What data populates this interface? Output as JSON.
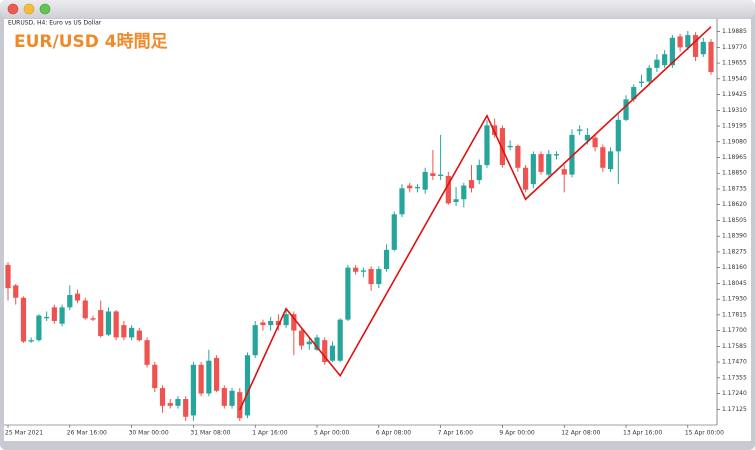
{
  "chart_data": {
    "type": "candlestick",
    "window_title": "EURUSD, H4:  Euro vs US Dollar",
    "title": "EUR/USD 4時間足",
    "title_color": "#ef8a2a",
    "up_color": "#26a69a",
    "down_color": "#ef5350",
    "categories": [
      "25 Mar 2021",
      null,
      null,
      null,
      null,
      null,
      null,
      null,
      "26 Mar 16:00",
      null,
      null,
      null,
      null,
      null,
      null,
      null,
      "30 Mar 00:00",
      null,
      null,
      null,
      null,
      null,
      null,
      null,
      "31 Mar 08:00",
      null,
      null,
      null,
      null,
      null,
      null,
      null,
      "1 Apr 16:00",
      null,
      null,
      null,
      null,
      null,
      null,
      null,
      "5 Apr 00:00",
      null,
      null,
      null,
      null,
      null,
      null,
      null,
      "6 Apr 08:00",
      null,
      null,
      null,
      null,
      null,
      null,
      null,
      "7 Apr 16:00",
      null,
      null,
      null,
      null,
      null,
      null,
      null,
      "9 Apr 00:00",
      null,
      null,
      null,
      null,
      null,
      null,
      null,
      "12 Apr 08:00",
      null,
      null,
      null,
      null,
      null,
      null,
      null,
      "13 Apr 16:00",
      null,
      null,
      null,
      null,
      null,
      null,
      null,
      "15 Apr 00:00",
      null,
      null,
      null
    ],
    "open": [
      1.1818,
      1.1803,
      1.1794,
      1.1762,
      1.1763,
      1.1779,
      1.1787,
      1.1775,
      1.1787,
      1.1797,
      1.1792,
      1.1779,
      1.1785,
      1.1767,
      1.1784,
      1.1774,
      1.1765,
      1.177,
      1.1763,
      1.1745,
      1.1728,
      1.1717,
      1.1715,
      1.172,
      1.1708,
      1.1745,
      1.1724,
      1.175,
      1.1728,
      1.1715,
      1.1725,
      1.1708,
      1.1752,
      1.1776,
      1.1774,
      1.1777,
      1.1774,
      1.1782,
      1.177,
      1.176,
      1.1756,
      1.1763,
      1.1748,
      1.1748,
      1.1778,
      1.1816,
      1.1813,
      1.1815,
      1.1804,
      1.1815,
      1.1829,
      1.1855,
      1.1876,
      1.1874,
      1.1873,
      1.1885,
      1.1883,
      1.1883,
      1.1864,
      1.1866,
      1.188,
      1.188,
      1.1891,
      1.192,
      1.1918,
      1.1904,
      1.1905,
      1.1889,
      1.1877,
      1.1899,
      1.1884,
      1.1898,
      1.1888,
      1.1884,
      1.1916,
      1.1909,
      1.1911,
      1.1904,
      1.1888,
      1.1901,
      1.1924,
      1.1939,
      1.1951,
      1.1952,
      1.1962,
      1.1964,
      1.1964,
      1.1985,
      1.1977,
      1.1986,
      1.1972,
      1.1981
    ],
    "high": [
      1.182,
      1.1804,
      1.1795,
      1.1765,
      1.1782,
      1.1784,
      1.1789,
      1.1789,
      1.1803,
      1.18,
      1.1794,
      1.1781,
      1.1792,
      1.1787,
      1.1785,
      1.1777,
      1.1774,
      1.1772,
      1.1765,
      1.1747,
      1.173,
      1.172,
      1.1722,
      1.1722,
      1.1747,
      1.1747,
      1.1756,
      1.1752,
      1.173,
      1.1728,
      1.1728,
      1.1754,
      1.1777,
      1.1778,
      1.178,
      1.1782,
      1.1785,
      1.1784,
      1.1772,
      1.1765,
      1.1767,
      1.1765,
      1.1762,
      1.1779,
      1.1818,
      1.1818,
      1.1816,
      1.1817,
      1.1817,
      1.1833,
      1.1857,
      1.1877,
      1.1878,
      1.1877,
      1.1889,
      1.1902,
      1.1913,
      1.1886,
      1.1875,
      1.1878,
      1.1891,
      1.1895,
      1.1924,
      1.1925,
      1.192,
      1.1909,
      1.1906,
      1.1891,
      1.1901,
      1.1901,
      1.1902,
      1.1901,
      1.1891,
      1.1917,
      1.192,
      1.1918,
      1.1913,
      1.1906,
      1.1904,
      1.1928,
      1.1942,
      1.195,
      1.1957,
      1.1964,
      1.1972,
      1.1975,
      1.1986,
      1.1987,
      1.1989,
      1.1988,
      1.1984,
      1.1983
    ],
    "low": [
      1.1792,
      1.1789,
      1.1761,
      1.1761,
      1.1762,
      1.1777,
      1.1775,
      1.1773,
      1.1785,
      1.179,
      1.1778,
      1.1777,
      1.1765,
      1.1766,
      1.1763,
      1.1763,
      1.1763,
      1.1762,
      1.1743,
      1.1725,
      1.171,
      1.1713,
      1.1713,
      1.1704,
      1.1704,
      1.1722,
      1.1722,
      1.1725,
      1.1713,
      1.1713,
      1.1704,
      1.1706,
      1.175,
      1.177,
      1.177,
      1.177,
      1.1772,
      1.1752,
      1.1756,
      1.1756,
      1.1755,
      1.1745,
      1.1747,
      1.1747,
      1.1777,
      1.1811,
      1.1809,
      1.1799,
      1.1801,
      1.1813,
      1.1828,
      1.1853,
      1.1871,
      1.1871,
      1.187,
      1.188,
      1.188,
      1.1862,
      1.1861,
      1.186,
      1.1871,
      1.1877,
      1.1889,
      1.1911,
      1.1889,
      1.1902,
      1.1886,
      1.1871,
      1.1874,
      1.1884,
      1.1882,
      1.1895,
      1.1871,
      1.1882,
      1.1913,
      1.1906,
      1.1901,
      1.1886,
      1.1886,
      1.1877,
      1.1923,
      1.1937,
      1.1948,
      1.1949,
      1.1959,
      1.1962,
      1.1962,
      1.1974,
      1.1975,
      1.1967,
      1.197,
      1.1957
    ],
    "close": [
      1.1801,
      1.1794,
      1.1762,
      1.1763,
      1.1781,
      1.178,
      1.1777,
      1.1787,
      1.1796,
      1.1792,
      1.1779,
      1.1778,
      1.1766,
      1.1784,
      1.1765,
      1.1765,
      1.1772,
      1.1763,
      1.1745,
      1.1728,
      1.1715,
      1.1715,
      1.172,
      1.1707,
      1.1745,
      1.1724,
      1.1748,
      1.1726,
      1.1715,
      1.1726,
      1.1706,
      1.1752,
      1.1774,
      1.1774,
      1.1777,
      1.1774,
      1.1782,
      1.177,
      1.1759,
      1.1762,
      1.1765,
      1.1747,
      1.1759,
      1.1778,
      1.1816,
      1.1813,
      1.1814,
      1.1804,
      1.1815,
      1.1829,
      1.1855,
      1.1874,
      1.1874,
      1.1875,
      1.1886,
      1.1883,
      1.1884,
      1.1863,
      1.1866,
      1.1876,
      1.1874,
      1.1891,
      1.192,
      1.1913,
      1.1891,
      1.1905,
      1.1889,
      1.1873,
      1.1899,
      1.1886,
      1.1899,
      1.1899,
      1.1884,
      1.1913,
      1.1917,
      1.1913,
      1.1904,
      1.1889,
      1.1901,
      1.1924,
      1.1939,
      1.1948,
      1.1952,
      1.1962,
      1.1968,
      1.1972,
      1.1984,
      1.1977,
      1.1986,
      1.197,
      1.1981,
      1.1959
    ],
    "overlay": {
      "color": "#e01010",
      "x": [
        30,
        36,
        43,
        62,
        67,
        91
      ],
      "values": [
        1.1712,
        1.1786,
        1.1737,
        1.1927,
        1.1866,
        1.1992
      ]
    },
    "ylim": [
      1.1701,
      1.1997
    ],
    "yticks": [
      1.19885,
      {
        "value": 1.1977,
        "label": "1.19770"
      },
      1.19655,
      {
        "value": 1.1954,
        "label": "1.19540"
      },
      1.19425,
      {
        "value": 1.1931,
        "label": "1.19310"
      },
      1.19195,
      {
        "value": 1.1908,
        "label": "1.19080"
      },
      1.18965,
      {
        "value": 1.1885,
        "label": "1.18850"
      },
      1.18735,
      {
        "value": 1.1862,
        "label": "1.18620"
      },
      1.18505,
      {
        "value": 1.1839,
        "label": "1.18390"
      },
      1.18275,
      {
        "value": 1.1816,
        "label": "1.18160"
      },
      1.18045,
      {
        "value": 1.1793,
        "label": "1.17930"
      },
      1.17815,
      {
        "value": 1.177,
        "label": "1.17700"
      },
      1.17585,
      {
        "value": 1.1747,
        "label": "1.17470"
      },
      1.17355,
      {
        "value": 1.1724,
        "label": "1.17240"
      },
      1.17125
    ]
  }
}
